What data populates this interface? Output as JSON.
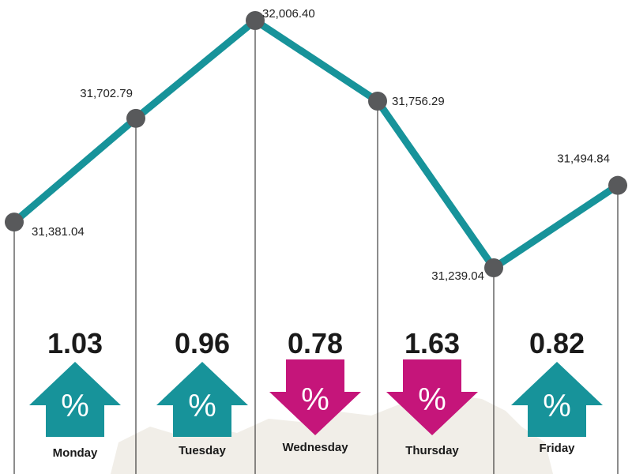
{
  "chart_data": {
    "type": "line",
    "categories": [
      "Monday",
      "Tuesday",
      "Wednesday",
      "Thursday",
      "Friday"
    ],
    "x_positions_label": "days",
    "points": [
      {
        "label": "31,381.04",
        "value": 31381.04
      },
      {
        "label": "31,702.79",
        "value": 31702.79
      },
      {
        "label": "32,006.40",
        "value": 32006.4
      },
      {
        "label": "31,756.29",
        "value": 31756.29
      },
      {
        "label": "31,239.04",
        "value": 31239.04
      },
      {
        "label": "31,494.84",
        "value": 31494.84
      }
    ],
    "daily_changes": [
      {
        "day": "Monday",
        "percent": "1.03",
        "direction": "up",
        "symbol": "%"
      },
      {
        "day": "Tuesday",
        "percent": "0.96",
        "direction": "up",
        "symbol": "%"
      },
      {
        "day": "Wednesday",
        "percent": "0.78",
        "direction": "down",
        "symbol": "%"
      },
      {
        "day": "Thursday",
        "percent": "1.63",
        "direction": "down",
        "symbol": "%"
      },
      {
        "day": "Friday",
        "percent": "0.82",
        "direction": "up",
        "symbol": "%"
      }
    ],
    "ylim": [
      30700,
      32100
    ]
  },
  "colors": {
    "line": "#17939a",
    "marker": "#58595b",
    "up": "#17939a",
    "down": "#c5157a",
    "map": "#efece6"
  }
}
